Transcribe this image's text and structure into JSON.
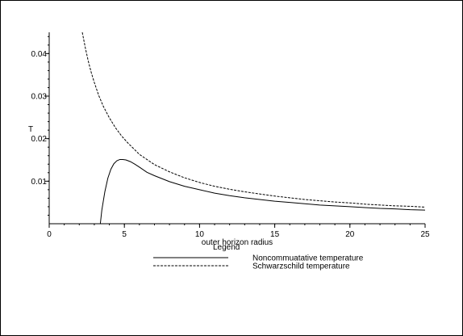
{
  "chart_data": {
    "type": "line",
    "title": "",
    "xlabel": "outer horizon radius",
    "ylabel": "T",
    "xlim": [
      0,
      25
    ],
    "ylim": [
      0,
      0.045
    ],
    "x_ticks": [
      0,
      5,
      10,
      15,
      20,
      25
    ],
    "x_tick_labels": [
      "0",
      "5",
      "10",
      "15",
      "20",
      "25"
    ],
    "y_ticks": [
      0.01,
      0.02,
      0.03,
      0.04
    ],
    "y_tick_labels": [
      "0.01",
      "0.02",
      "0.03",
      "0.04"
    ],
    "legend_title": "Legend",
    "legend_position": "bottom",
    "series": [
      {
        "name": "Noncommuatative temperature",
        "style": "solid",
        "color": "#000000",
        "x": [
          3.4,
          3.5,
          3.7,
          3.9,
          4.1,
          4.3,
          4.5,
          4.7,
          4.9,
          5.1,
          5.4,
          5.7,
          6.0,
          6.5,
          7.0,
          8.0,
          9.0,
          10.0,
          11.0,
          12.0,
          13.0,
          14.0,
          15.0,
          16.0,
          17.0,
          18.0,
          19.0,
          20.0,
          21.0,
          22.0,
          23.0,
          24.0,
          25.0
        ],
        "y": [
          0.0,
          0.0032,
          0.0075,
          0.0107,
          0.0128,
          0.0141,
          0.0148,
          0.0151,
          0.0151,
          0.015,
          0.0146,
          0.014,
          0.0133,
          0.0121,
          0.0113,
          0.0099,
          0.0088,
          0.008,
          0.0072,
          0.0066,
          0.0061,
          0.0057,
          0.0053,
          0.005,
          0.0047,
          0.0044,
          0.0042,
          0.004,
          0.0038,
          0.0036,
          0.0035,
          0.0033,
          0.0032
        ]
      },
      {
        "name": "Schwarzschild temperature",
        "style": "dashed",
        "color": "#000000",
        "x": [
          2.2,
          2.4,
          2.6,
          2.8,
          3.0,
          3.3,
          3.6,
          4.0,
          4.4,
          4.8,
          5.2,
          5.6,
          6.0,
          6.5,
          7.0,
          8.0,
          9.0,
          10.0,
          11.0,
          12.0,
          13.0,
          14.0,
          15.0,
          16.0,
          17.0,
          18.0,
          19.0,
          20.0,
          21.0,
          22.0,
          23.0,
          24.0,
          25.0
        ],
        "y": [
          0.045,
          0.0414,
          0.0382,
          0.0355,
          0.0332,
          0.0301,
          0.0276,
          0.0249,
          0.0226,
          0.0207,
          0.0191,
          0.0177,
          0.0163,
          0.0151,
          0.0139,
          0.0122,
          0.0108,
          0.0097,
          0.0088,
          0.0081,
          0.0075,
          0.007,
          0.0065,
          0.0061,
          0.0057,
          0.0054,
          0.0051,
          0.0049,
          0.0046,
          0.0044,
          0.0042,
          0.0041,
          0.0039
        ]
      }
    ]
  }
}
